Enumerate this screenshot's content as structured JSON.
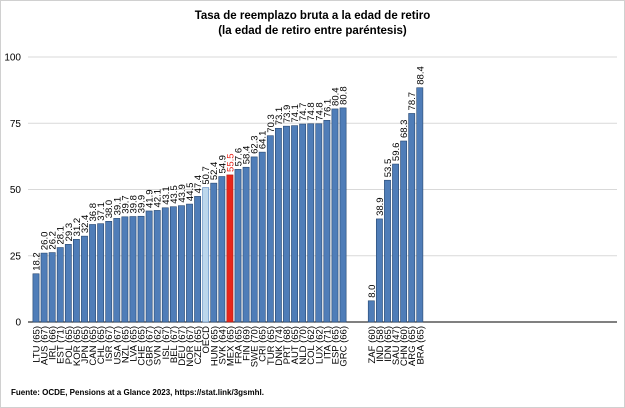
{
  "chart_data": {
    "type": "bar",
    "title": "Tasa de reemplazo bruta a la edad de retiro",
    "subtitle": "(la edad de retiro entre paréntesis)",
    "xlabel": "",
    "ylabel": "",
    "ylim": [
      0,
      100
    ],
    "yticks": [
      0,
      25,
      50,
      75,
      100
    ],
    "grid": true,
    "legend": "none",
    "categories": [
      "LTU (65)",
      "AUS (67)",
      "IRL (66)",
      "EST (71)",
      "POL (65)",
      "KOR (65)",
      "JPN (65)",
      "CAN (65)",
      "CHL (65)",
      "ISR (67)",
      "USA (67)",
      "NZL (65)",
      "LVA (65)",
      "CHE (65)",
      "GBR (67)",
      "SVN (62)",
      "ISL (67)",
      "BEL (67)",
      "DEU (67)",
      "NOR (67)",
      "CZE (65)",
      "OECD",
      "HUN (65)",
      "SVK (64)",
      "MEX (65)",
      "FRA (65)",
      "FIN (69)",
      "SWE (70)",
      "CRI (65)",
      "TUR (65)",
      "DNK (74)",
      "PRT (68)",
      "AUT (65)",
      "NLD (70)",
      "COL (62)",
      "LUX (62)",
      "ITA (71)",
      "ESP (65)",
      "GRC (66)",
      "ZAF (60)",
      "IND (58)",
      "IDN (65)",
      "SAU (47)",
      "CHN (60)",
      "ARG (65)",
      "BRA (65)"
    ],
    "values": [
      18.2,
      26.0,
      26.2,
      28.1,
      29.3,
      31.2,
      32.4,
      36.8,
      37.1,
      38.0,
      39.1,
      39.7,
      39.8,
      39.9,
      41.9,
      42.1,
      43.1,
      43.5,
      43.9,
      44.5,
      47.4,
      50.7,
      52.4,
      54.9,
      55.5,
      57.6,
      58.4,
      62.3,
      64.1,
      70.3,
      73.1,
      73.9,
      74.1,
      74.7,
      74.8,
      74.8,
      76.1,
      80.4,
      80.8,
      8.0,
      38.9,
      53.5,
      59.6,
      68.3,
      78.7,
      88.4
    ],
    "value_labels": [
      "18.2",
      "26.0",
      "26.2",
      "28.1",
      "29.3",
      "31.2",
      "32.4",
      "36.8",
      "37.1",
      "38.0",
      "39.1",
      "39.7",
      "39.8",
      "39.9",
      "41.9",
      "42.1",
      "43.1",
      "43.5",
      "43.9",
      "44.5",
      "47.4",
      "50.7",
      "52.4",
      "54.9",
      "55.5",
      "57.6",
      "58.4",
      "62.3",
      "64.1",
      "70.3",
      "73.1",
      "73.9",
      "74.1",
      "74.7",
      "74.8",
      "74.8",
      "76.1",
      "80.4",
      "80.8",
      "8.0",
      "38.9",
      "53.5",
      "59.6",
      "68.3",
      "78.7",
      "88.4"
    ],
    "groups": [
      {
        "from": 0,
        "to": 38
      },
      {
        "from": 39,
        "to": 45
      }
    ],
    "highlights": [
      {
        "category": "OECD",
        "color": "#bcd7ec",
        "stroke": "#4f81bd"
      },
      {
        "category": "MEX (65)",
        "color": "#e8251b",
        "stroke": "#a81a12",
        "label_color": "#e8251b"
      }
    ],
    "colors": {
      "bar": "#4f7db8",
      "bar_stroke": "#26466f",
      "grid": "#d9d9d9",
      "axis": "#000000",
      "text": "#000000"
    }
  },
  "source_note": "Fuente: OCDE, Pensions at a Glance 2023, https://stat.link/3gsmhl."
}
